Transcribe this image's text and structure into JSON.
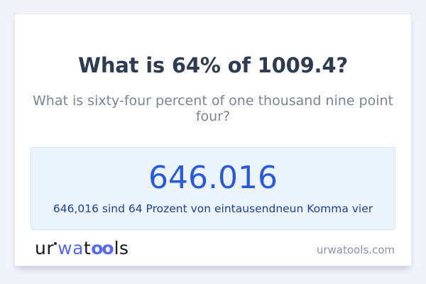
{
  "page": {
    "background_color": "#f3f4f9"
  },
  "card": {
    "background_color": "#ffffff",
    "title": "What is 64% of 1009.4?",
    "subtitle": "What is sixty-four percent of one thousand nine point four?"
  },
  "result": {
    "value": "646.016",
    "sentence": "646,016 sind 64 Prozent von eintausendneun Komma vier",
    "box_background": "#ebf3fc",
    "box_border": "#d9e6f5",
    "value_color": "#2a5ad6",
    "sentence_color": "#20409a"
  },
  "footer": {
    "logo": {
      "full_text": "urwatools",
      "segments": {
        "ur": "ur",
        "wa": "wa",
        "t": "t",
        "oo": "oo",
        "ls": "ls"
      },
      "accent_color": "#5a68f0",
      "dark_color": "#17171b",
      "ring_icon": "degree-ring"
    },
    "website": "urwatools.com"
  },
  "colors": {
    "title_text": "#2d3c50",
    "subtitle_text": "#7c8595",
    "card_border": "#e4e7f2"
  }
}
